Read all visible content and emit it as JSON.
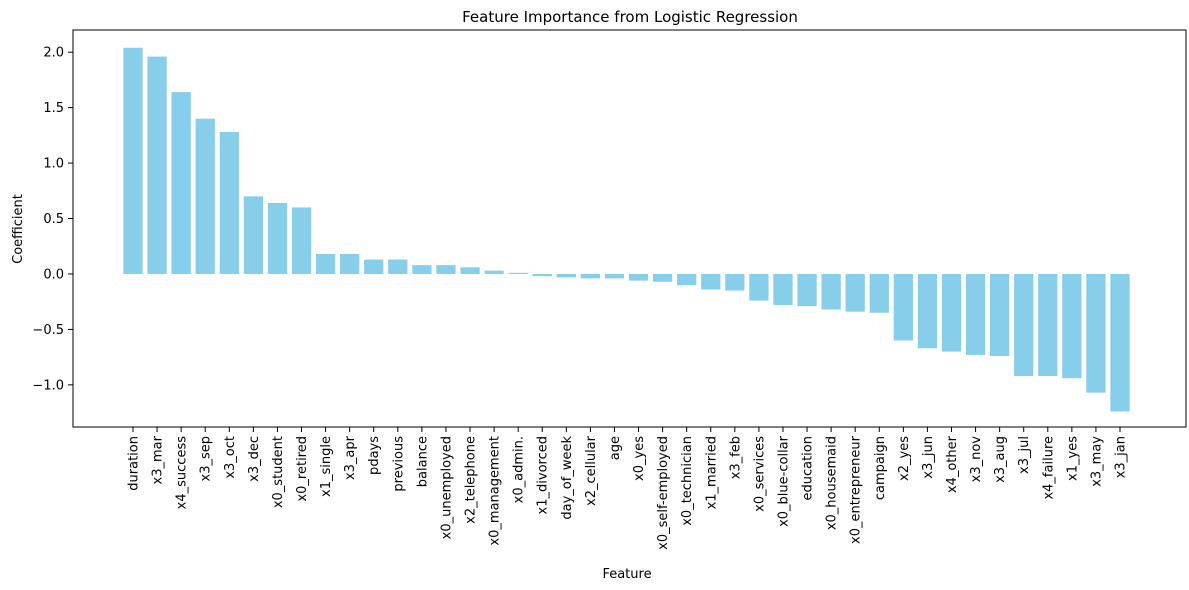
{
  "chart_data": {
    "type": "bar",
    "title": "Feature Importance from Logistic Regression",
    "xlabel": "Feature",
    "ylabel": "Coefficient",
    "ylim": [
      -1.38,
      2.2
    ],
    "yticks": [
      -1.0,
      -0.5,
      0.0,
      0.5,
      1.0,
      1.5,
      2.0
    ],
    "grid": false,
    "bar_color": "#87ceeb",
    "categories": [
      "duration",
      "x3_mar",
      "x4_success",
      "x3_sep",
      "x3_oct",
      "x3_dec",
      "x0_student",
      "x0_retired",
      "x1_single",
      "x3_apr",
      "pdays",
      "previous",
      "balance",
      "x0_unemployed",
      "x2_telephone",
      "x0_management",
      "x0_admin.",
      "x1_divorced",
      "day_of_week",
      "x2_cellular",
      "age",
      "x0_yes",
      "x0_self-employed",
      "x0_technician",
      "x1_married",
      "x3_feb",
      "x0_services",
      "x0_blue-collar",
      "education",
      "x0_housemaid",
      "x0_entrepreneur",
      "campaign",
      "x2_yes",
      "x3_jun",
      "x4_other",
      "x3_nov",
      "x3_aug",
      "x3_jul",
      "x4_failure",
      "x1_yes",
      "x3_may",
      "x3_jan"
    ],
    "values": [
      2.04,
      1.96,
      1.64,
      1.4,
      1.28,
      0.7,
      0.64,
      0.6,
      0.18,
      0.18,
      0.13,
      0.13,
      0.08,
      0.08,
      0.06,
      0.03,
      0.01,
      -0.02,
      -0.03,
      -0.04,
      -0.04,
      -0.06,
      -0.07,
      -0.1,
      -0.14,
      -0.15,
      -0.24,
      -0.28,
      -0.29,
      -0.32,
      -0.34,
      -0.35,
      -0.6,
      -0.67,
      -0.7,
      -0.73,
      -0.74,
      -0.92,
      -0.92,
      -0.94,
      -1.07,
      -1.24
    ]
  }
}
